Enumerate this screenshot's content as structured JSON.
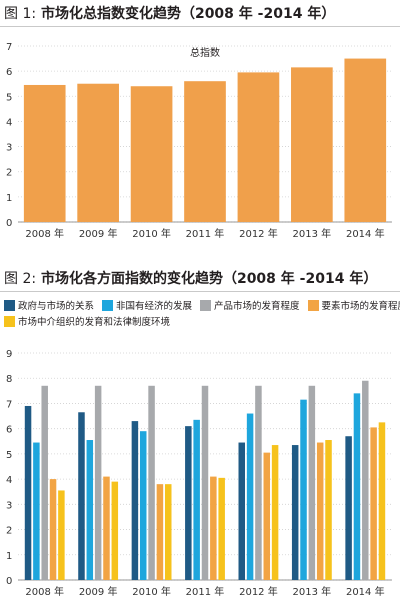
{
  "figure1": {
    "label": "图 1:",
    "title": "市场化总指数变化趋势（2008 年 -2014 年）"
  },
  "figure2": {
    "label": "图 2:",
    "title": "市场化各方面指数的变化趋势（2008 年 -2014 年）"
  },
  "colors": {
    "orange": "#f0a04b",
    "navy": "#1f5a85",
    "cyan": "#1ea6dd",
    "gray": "#a7a9ac",
    "amber": "#f2a444",
    "yellow": "#f6c21c"
  },
  "chart_data": [
    {
      "type": "bar",
      "title": "总指数",
      "categories": [
        "2008 年",
        "2009 年",
        "2010 年",
        "2011 年",
        "2012 年",
        "2013 年",
        "2014 年"
      ],
      "series": [
        {
          "name": "总指数",
          "color": "#f0a04b",
          "values": [
            5.45,
            5.5,
            5.4,
            5.6,
            5.95,
            6.15,
            6.5
          ]
        }
      ],
      "ylim": [
        0,
        7
      ],
      "yticks": [
        "0",
        "1",
        "2",
        "3",
        "4",
        "5",
        "6",
        "7"
      ],
      "grid": true
    },
    {
      "type": "bar",
      "title": "",
      "categories": [
        "2008 年",
        "2009 年",
        "2010 年",
        "2011 年",
        "2012 年",
        "2013 年",
        "2014 年"
      ],
      "series": [
        {
          "name": "政府与市场的关系",
          "color": "#1f5a85",
          "values": [
            6.9,
            6.65,
            6.3,
            6.1,
            5.45,
            5.35,
            5.7
          ]
        },
        {
          "name": "非国有经济的发展",
          "color": "#1ea6dd",
          "values": [
            5.45,
            5.55,
            5.9,
            6.35,
            6.6,
            7.15,
            7.4
          ]
        },
        {
          "name": "产品市场的发育程度",
          "color": "#a7a9ac",
          "values": [
            7.7,
            7.7,
            7.7,
            7.7,
            7.7,
            7.7,
            7.9
          ]
        },
        {
          "name": "要素市场的发育程度",
          "color": "#f2a444",
          "values": [
            4.0,
            4.1,
            3.8,
            4.1,
            5.05,
            5.45,
            6.05
          ]
        },
        {
          "name": "市场中介组织的发育和法律制度环境",
          "color": "#f6c21c",
          "values": [
            3.55,
            3.9,
            3.8,
            4.05,
            5.35,
            5.55,
            6.25
          ]
        }
      ],
      "ylim": [
        0,
        9
      ],
      "yticks": [
        "0",
        "1",
        "2",
        "3",
        "4",
        "5",
        "6",
        "7",
        "8",
        "9"
      ],
      "grid": true,
      "legend_position": "top"
    }
  ]
}
